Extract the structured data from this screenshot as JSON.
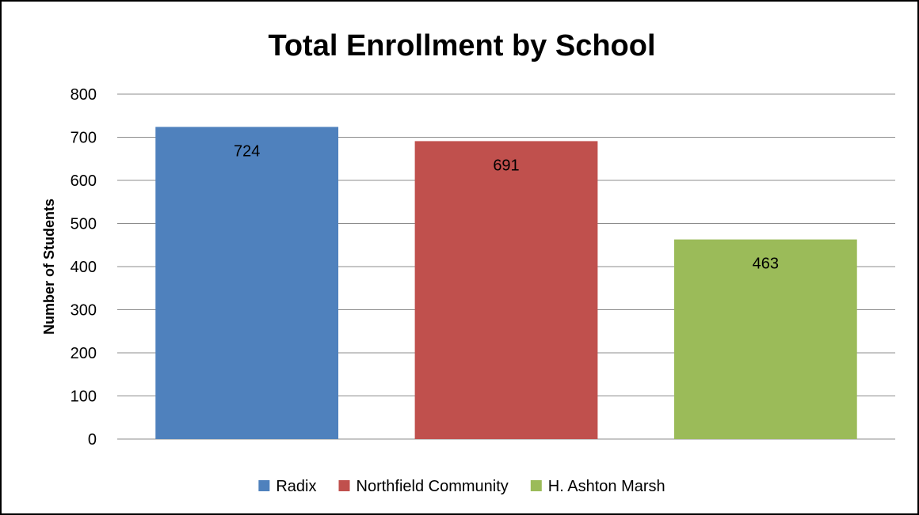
{
  "chart_data": {
    "type": "bar",
    "title": "Total Enrollment by School",
    "xlabel": "",
    "ylabel": "Number of Students",
    "ylim": [
      0,
      800
    ],
    "yticks": [
      0,
      100,
      200,
      300,
      400,
      500,
      600,
      700,
      800
    ],
    "grid": true,
    "legend_position": "bottom",
    "data_labels": true,
    "series": [
      {
        "name": "Radix",
        "value": 724,
        "color": "#4f81bd"
      },
      {
        "name": "Northfield Community",
        "value": 691,
        "color": "#c0504d"
      },
      {
        "name": "H. Ashton Marsh",
        "value": 463,
        "color": "#9bbb59"
      }
    ]
  }
}
